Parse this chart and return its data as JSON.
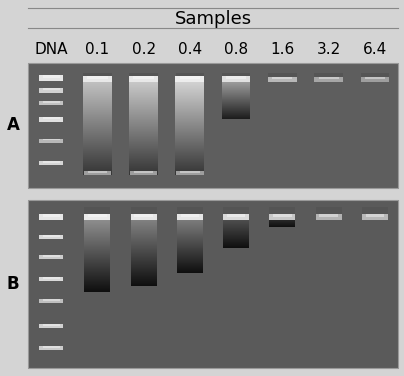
{
  "title": "Samples",
  "lane_labels": [
    "DNA",
    "0.1",
    "0.2",
    "0.4",
    "0.8",
    "1.6",
    "3.2",
    "6.4"
  ],
  "figsize": [
    4.04,
    3.76
  ],
  "dpi": 100,
  "fig_bg": "#d4d4d4",
  "gel_bg_A": 95,
  "gel_bg_B": 90,
  "title_fontsize": 13,
  "label_fontsize": 11
}
